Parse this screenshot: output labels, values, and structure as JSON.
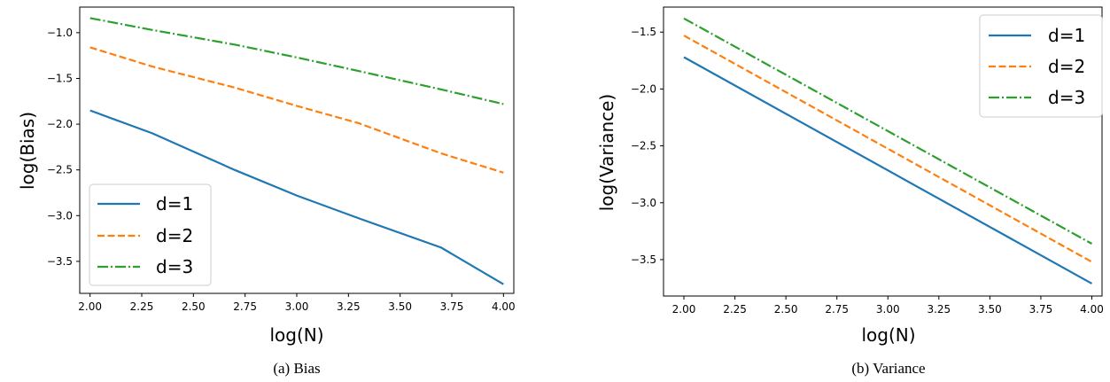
{
  "chart_data": [
    {
      "type": "line",
      "caption": "(a)  Bias",
      "xlabel": "log(N)",
      "ylabel": "log(Bias)",
      "xlim": [
        1.95,
        4.05
      ],
      "ylim": [
        -3.85,
        -0.72
      ],
      "xticks": [
        "2.00",
        "2.25",
        "2.50",
        "2.75",
        "3.00",
        "3.25",
        "3.50",
        "3.75",
        "4.00"
      ],
      "yticks": [
        "-1.0",
        "-1.5",
        "-2.0",
        "-2.5",
        "-3.0",
        "-3.5"
      ],
      "legend_position": "lower-left",
      "series": [
        {
          "name": "d=1",
          "color": "#1f77b4",
          "dash": "solid",
          "x": [
            2.0,
            2.301,
            2.699,
            3.0,
            3.301,
            3.699,
            4.0
          ],
          "y": [
            -1.85,
            -2.1,
            -2.5,
            -2.78,
            -3.03,
            -3.35,
            -3.75
          ]
        },
        {
          "name": "d=2",
          "color": "#ff7f0e",
          "dash": "dashed",
          "x": [
            2.0,
            2.301,
            2.699,
            3.0,
            3.301,
            3.699,
            4.0
          ],
          "y": [
            -1.16,
            -1.37,
            -1.6,
            -1.8,
            -1.99,
            -2.32,
            -2.53
          ]
        },
        {
          "name": "d=3",
          "color": "#2ca02c",
          "dash": "dashdot",
          "x": [
            2.0,
            2.301,
            2.699,
            3.0,
            3.301,
            3.699,
            4.0
          ],
          "y": [
            -0.84,
            -0.97,
            -1.13,
            -1.27,
            -1.42,
            -1.62,
            -1.78
          ]
        }
      ]
    },
    {
      "type": "line",
      "caption": "(b)  Variance",
      "xlabel": "log(N)",
      "ylabel": "log(Variance)",
      "xlim": [
        1.9,
        4.05
      ],
      "ylim": [
        -3.82,
        -1.28
      ],
      "xticks": [
        "2.00",
        "2.25",
        "2.50",
        "2.75",
        "3.00",
        "3.25",
        "3.50",
        "3.75",
        "4.00"
      ],
      "yticks": [
        "-1.5",
        "-2.0",
        "-2.5",
        "-3.0",
        "-3.5"
      ],
      "legend_position": "upper-right",
      "series": [
        {
          "name": "d=1",
          "color": "#1f77b4",
          "dash": "solid",
          "x": [
            2.0,
            4.0
          ],
          "y": [
            -1.72,
            -3.71
          ]
        },
        {
          "name": "d=2",
          "color": "#ff7f0e",
          "dash": "dashed",
          "x": [
            2.0,
            4.0
          ],
          "y": [
            -1.53,
            -3.52
          ]
        },
        {
          "name": "d=3",
          "color": "#2ca02c",
          "dash": "dashdot",
          "x": [
            2.0,
            4.0
          ],
          "y": [
            -1.38,
            -3.36
          ]
        }
      ]
    }
  ]
}
